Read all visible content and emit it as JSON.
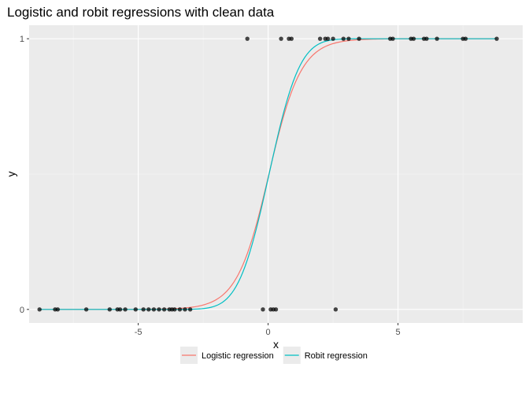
{
  "chart_data": {
    "type": "scatter",
    "title": "Logistic and robit regressions with clean data",
    "xlabel": "x",
    "ylabel": "y",
    "xlim": [
      -9.2,
      9.8
    ],
    "ylim": [
      -0.05,
      1.05
    ],
    "x_ticks": [
      -5,
      0,
      5
    ],
    "y_ticks": [
      0,
      1
    ],
    "grid": true,
    "legend_position": "bottom",
    "points": {
      "y0": [
        -8.8,
        -8.2,
        -8.1,
        -7.0,
        -6.1,
        -5.8,
        -5.7,
        -5.5,
        -5.1,
        -4.8,
        -4.6,
        -4.4,
        -4.2,
        -4.0,
        -3.8,
        -3.7,
        -3.6,
        -3.4,
        -3.2,
        -3.0,
        -0.2,
        0.1,
        0.2,
        0.3,
        2.6
      ],
      "y1": [
        -0.8,
        0.5,
        0.8,
        0.9,
        2.0,
        2.2,
        2.3,
        2.5,
        2.9,
        3.1,
        3.5,
        4.7,
        4.8,
        5.5,
        5.6,
        6.0,
        6.1,
        6.5,
        7.5,
        7.6,
        8.8
      ]
    },
    "series": [
      {
        "name": "Logistic regression",
        "color": "#F8766D",
        "x_range": [
          -8.8,
          8.8
        ],
        "intercept": -0.05,
        "slope": 1.62,
        "link": "logit"
      },
      {
        "name": "Robit regression",
        "color": "#00BFC4",
        "x_range": [
          -8.8,
          8.8
        ],
        "intercept": -0.04,
        "slope": 1.08,
        "link": "probit"
      }
    ]
  }
}
